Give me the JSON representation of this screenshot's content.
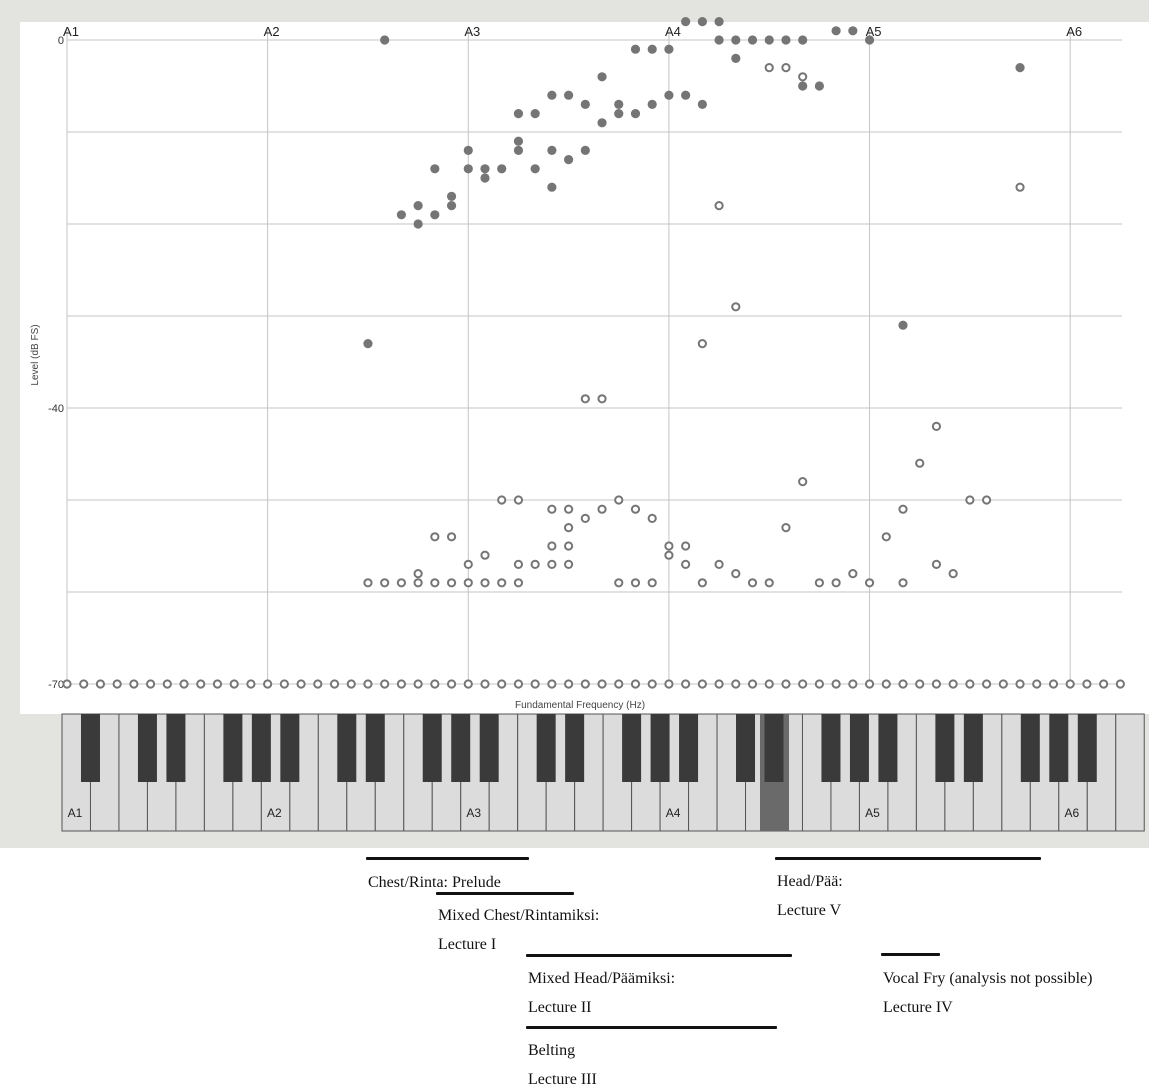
{
  "chart_data": {
    "type": "scatter",
    "xlabel": "Fundamental Frequency (Hz)",
    "ylabel": "Level (dB FS)",
    "x_unit": "semitones above A1",
    "x_range": [
      0,
      63
    ],
    "ylim": [
      -70,
      0
    ],
    "y_ticks": [
      {
        "value": 0,
        "label": "0"
      },
      {
        "value": -10,
        "label": ""
      },
      {
        "value": -20,
        "label": ""
      },
      {
        "value": -30,
        "label": ""
      },
      {
        "value": -40,
        "label": "-40"
      },
      {
        "value": -50,
        "label": ""
      },
      {
        "value": -60,
        "label": ""
      },
      {
        "value": -70,
        "label": "-70"
      }
    ],
    "x_ticks": [
      {
        "value": 0,
        "label": "A1"
      },
      {
        "value": 12,
        "label": "A2"
      },
      {
        "value": 24,
        "label": "A3"
      },
      {
        "value": 36,
        "label": "A4"
      },
      {
        "value": 48,
        "label": "A5"
      },
      {
        "value": 60,
        "label": "A6"
      }
    ],
    "grid": true,
    "series": [
      {
        "marker": "filled",
        "color": "#757575",
        "points": [
          [
            19,
            0
          ],
          [
            18,
            -33
          ],
          [
            20,
            -19
          ],
          [
            21,
            -18
          ],
          [
            21,
            -20
          ],
          [
            22,
            -19
          ],
          [
            22,
            -14
          ],
          [
            23,
            -17
          ],
          [
            23,
            -18
          ],
          [
            24,
            -12
          ],
          [
            24,
            -14
          ],
          [
            25,
            -14
          ],
          [
            25,
            -15
          ],
          [
            26,
            -14
          ],
          [
            27,
            -8
          ],
          [
            27,
            -11
          ],
          [
            27,
            -12
          ],
          [
            28,
            -8
          ],
          [
            28,
            -14
          ],
          [
            29,
            -6
          ],
          [
            29,
            -12
          ],
          [
            29,
            -16
          ],
          [
            30,
            -6
          ],
          [
            30,
            -13
          ],
          [
            31,
            -7
          ],
          [
            31,
            -12
          ],
          [
            32,
            -4
          ],
          [
            32,
            -9
          ],
          [
            33,
            -7
          ],
          [
            33,
            -8
          ],
          [
            34,
            -1
          ],
          [
            34,
            -8
          ],
          [
            35,
            -1
          ],
          [
            35,
            -7
          ],
          [
            36,
            -1
          ],
          [
            36,
            -6
          ],
          [
            37,
            -6
          ],
          [
            37,
            2
          ],
          [
            38,
            -7
          ],
          [
            38,
            2
          ],
          [
            39,
            2
          ],
          [
            39,
            0
          ],
          [
            40,
            0
          ],
          [
            40,
            -2
          ],
          [
            41,
            0
          ],
          [
            42,
            0
          ],
          [
            43,
            0
          ],
          [
            44,
            0
          ],
          [
            44,
            -5
          ],
          [
            45,
            -5
          ],
          [
            46,
            1
          ],
          [
            47,
            1
          ],
          [
            48,
            0
          ],
          [
            50,
            -31
          ],
          [
            57,
            -3
          ]
        ]
      },
      {
        "marker": "open",
        "color": "#757575",
        "points": [
          [
            18,
            -59
          ],
          [
            19,
            -59
          ],
          [
            20,
            -59
          ],
          [
            21,
            -58
          ],
          [
            21,
            -59
          ],
          [
            22,
            -59
          ],
          [
            22,
            -54
          ],
          [
            23,
            -54
          ],
          [
            23,
            -59
          ],
          [
            24,
            -59
          ],
          [
            24,
            -57
          ],
          [
            25,
            -59
          ],
          [
            25,
            -56
          ],
          [
            26,
            -59
          ],
          [
            26,
            -50
          ],
          [
            27,
            -59
          ],
          [
            27,
            -57
          ],
          [
            27,
            -50
          ],
          [
            28,
            -57
          ],
          [
            29,
            -57
          ],
          [
            29,
            -55
          ],
          [
            29,
            -51
          ],
          [
            30,
            -57
          ],
          [
            30,
            -55
          ],
          [
            30,
            -53
          ],
          [
            30,
            -51
          ],
          [
            31,
            -52
          ],
          [
            31,
            -39
          ],
          [
            32,
            -51
          ],
          [
            32,
            -39
          ],
          [
            33,
            -50
          ],
          [
            33,
            -59
          ],
          [
            34,
            -59
          ],
          [
            34,
            -51
          ],
          [
            35,
            -59
          ],
          [
            35,
            -52
          ],
          [
            36,
            -55
          ],
          [
            36,
            -56
          ],
          [
            37,
            -55
          ],
          [
            37,
            -57
          ],
          [
            38,
            -59
          ],
          [
            38,
            -33
          ],
          [
            39,
            -57
          ],
          [
            39,
            -18
          ],
          [
            40,
            -58
          ],
          [
            40,
            -29
          ],
          [
            41,
            -59
          ],
          [
            42,
            -59
          ],
          [
            42,
            -3
          ],
          [
            43,
            -3
          ],
          [
            43,
            -53
          ],
          [
            44,
            -4
          ],
          [
            44,
            -48
          ],
          [
            45,
            -59
          ],
          [
            46,
            -59
          ],
          [
            47,
            -58
          ],
          [
            48,
            -59
          ],
          [
            49,
            -54
          ],
          [
            50,
            -59
          ],
          [
            50,
            -51
          ],
          [
            51,
            -46
          ],
          [
            52,
            -57
          ],
          [
            52,
            -42
          ],
          [
            53,
            -58
          ],
          [
            54,
            -50
          ],
          [
            55,
            -50
          ],
          [
            57,
            -16
          ],
          [
            0,
            -70
          ],
          [
            1,
            -70
          ],
          [
            2,
            -70
          ],
          [
            3,
            -70
          ],
          [
            4,
            -70
          ],
          [
            5,
            -70
          ],
          [
            6,
            -70
          ],
          [
            7,
            -70
          ],
          [
            8,
            -70
          ],
          [
            9,
            -70
          ],
          [
            10,
            -70
          ],
          [
            11,
            -70
          ],
          [
            12,
            -70
          ],
          [
            13,
            -70
          ],
          [
            14,
            -70
          ],
          [
            15,
            -70
          ],
          [
            16,
            -70
          ],
          [
            17,
            -70
          ],
          [
            18,
            -70
          ],
          [
            19,
            -70
          ],
          [
            20,
            -70
          ],
          [
            21,
            -70
          ],
          [
            22,
            -70
          ],
          [
            23,
            -70
          ],
          [
            24,
            -70
          ],
          [
            25,
            -70
          ],
          [
            26,
            -70
          ],
          [
            27,
            -70
          ],
          [
            28,
            -70
          ],
          [
            29,
            -70
          ],
          [
            30,
            -70
          ],
          [
            31,
            -70
          ],
          [
            32,
            -70
          ],
          [
            33,
            -70
          ],
          [
            34,
            -70
          ],
          [
            35,
            -70
          ],
          [
            36,
            -70
          ],
          [
            37,
            -70
          ],
          [
            38,
            -70
          ],
          [
            39,
            -70
          ],
          [
            40,
            -70
          ],
          [
            41,
            -70
          ],
          [
            42,
            -70
          ],
          [
            43,
            -70
          ],
          [
            44,
            -70
          ],
          [
            45,
            -70
          ],
          [
            46,
            -70
          ],
          [
            47,
            -70
          ],
          [
            48,
            -70
          ],
          [
            49,
            -70
          ],
          [
            50,
            -70
          ],
          [
            51,
            -70
          ],
          [
            52,
            -70
          ],
          [
            53,
            -70
          ],
          [
            54,
            -70
          ],
          [
            55,
            -70
          ],
          [
            56,
            -70
          ],
          [
            57,
            -70
          ],
          [
            58,
            -70
          ],
          [
            59,
            -70
          ],
          [
            60,
            -70
          ],
          [
            61,
            -70
          ],
          [
            62,
            -70
          ],
          [
            63,
            -70
          ]
        ]
      }
    ],
    "keyboard": {
      "labels": [
        "A1",
        "A2",
        "A3",
        "A4",
        "A5",
        "A6"
      ],
      "highlighted_key": "A#4"
    }
  },
  "annotations": [
    {
      "line1": "Chest/Rinta: Prelude",
      "line2": ""
    },
    {
      "line1": "Mixed Chest/Rintamiksi:",
      "line2": "Lecture I"
    },
    {
      "line1": "Mixed Head/Päämiksi:",
      "line2": "Lecture II"
    },
    {
      "line1": "Belting",
      "line2": "Lecture III"
    },
    {
      "line1": "Vocal Fry (analysis not possible)",
      "line2": "Lecture IV"
    },
    {
      "line1": "Head/Pää:",
      "line2": "Lecture V"
    }
  ],
  "colors": {
    "frame": "#e3e3e0",
    "grid": "#c4c4c4",
    "marker": "#757575",
    "black_key": "#3a3a3a",
    "white_key": "#dcdcdc",
    "highlight_key": "#6a6a6a"
  }
}
